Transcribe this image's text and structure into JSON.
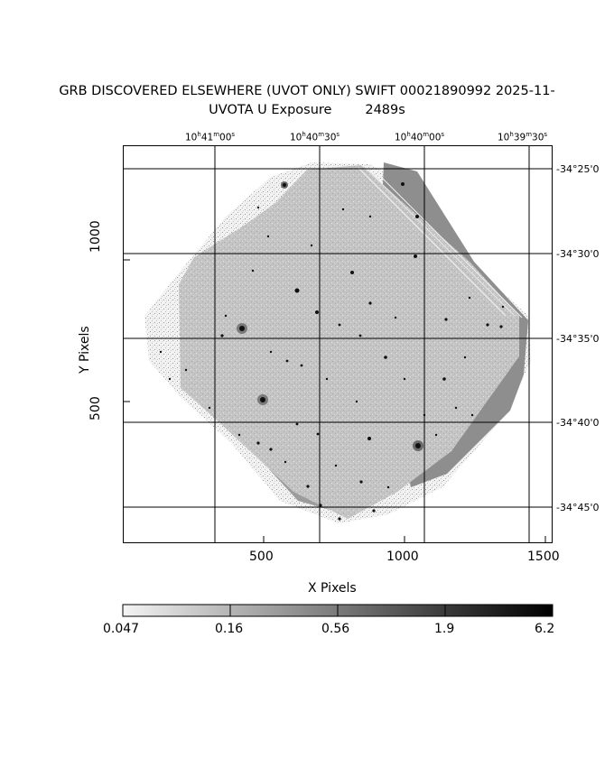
{
  "title_line1": "GRB DISCOVERED ELSEWHERE (UVOT ONLY) SWIFT 00021890992 2025-11-",
  "title_line2": "UVOTA U Exposure        2489s",
  "xlabel": "X Pixels",
  "ylabel": "Y Pixels",
  "x_ticks": [
    "500",
    "1000",
    "1500"
  ],
  "y_ticks": [
    "1000",
    "500"
  ],
  "ra_ticks": [
    {
      "h": "10",
      "m": "41",
      "s": "00"
    },
    {
      "h": "10",
      "m": "40",
      "s": "30"
    },
    {
      "h": "10",
      "m": "40",
      "s": "00"
    },
    {
      "h": "10",
      "m": "39",
      "s": "30"
    }
  ],
  "dec_ticks": [
    "-34°25'0",
    "-34°30'0",
    "-34°35'0",
    "-34°40'0",
    "-34°45'0"
  ],
  "colorbar": {
    "labels": [
      "0.047",
      "0.16",
      "0.56",
      "1.9",
      "6.2"
    ],
    "gradient_from": "#f4f4f4",
    "gradient_to": "#000000"
  },
  "colors": {
    "background": "#ffffff",
    "image_light": "#bdbdbd",
    "image_dark": "#8a8a8a",
    "grid": "#000000"
  }
}
